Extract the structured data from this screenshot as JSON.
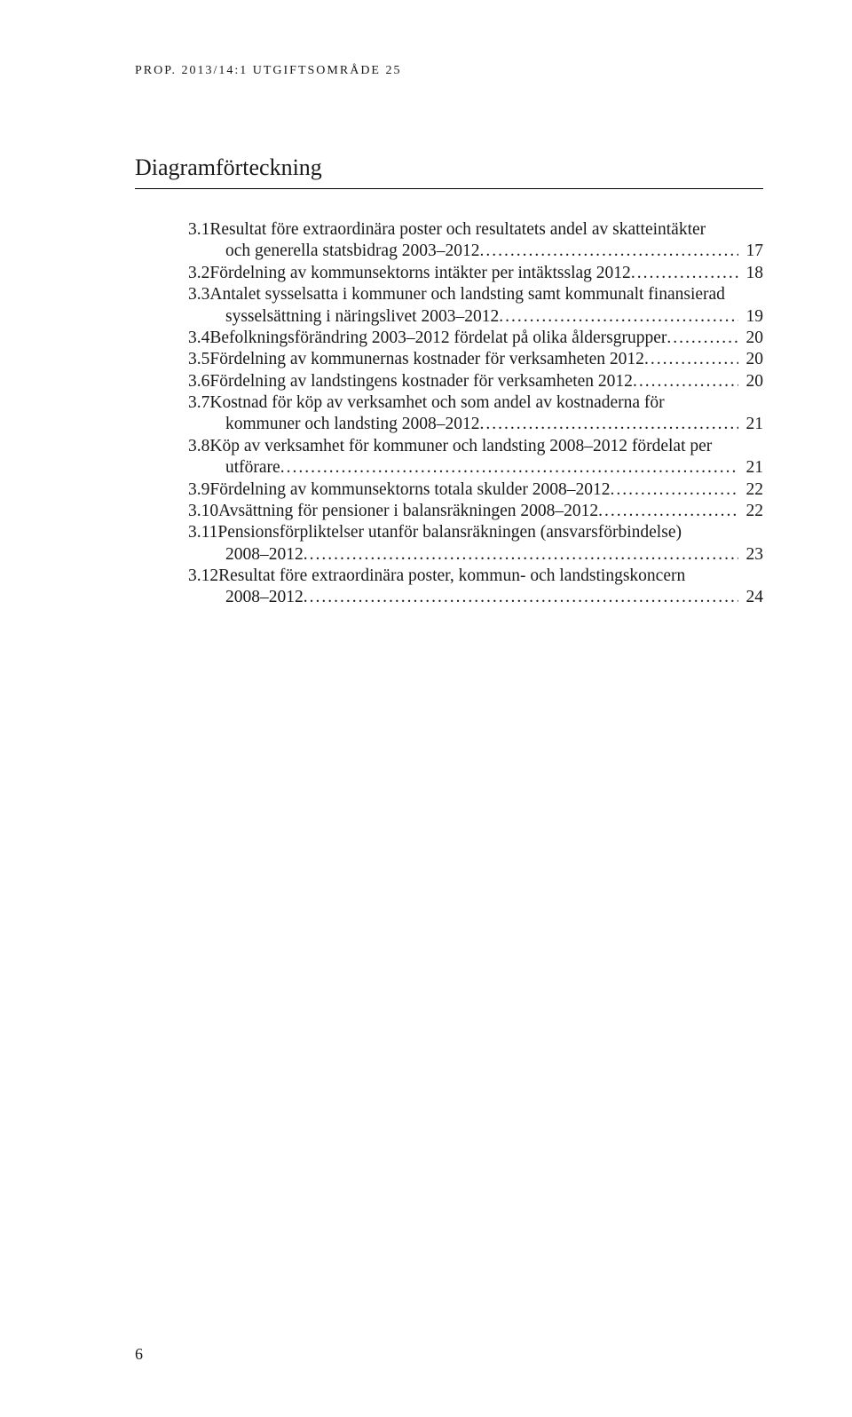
{
  "running_head": "PROP. 2013/14:1 UTGIFTSOMRÅDE 25",
  "section_title": "Diagramförteckning",
  "page_number": "6",
  "entries": [
    {
      "num": "3.1 ",
      "lines": [
        "Resultat före extraordinära poster och resultatets andel av skatteintäkter",
        "och generella statsbidrag 2003–2012"
      ],
      "page": "17"
    },
    {
      "num": "3.2 ",
      "lines": [
        "Fördelning av kommunsektorns intäkter per intäktsslag 2012"
      ],
      "page": "18"
    },
    {
      "num": "3.3 ",
      "lines": [
        "Antalet sysselsatta i kommuner och landsting samt kommunalt finansierad",
        "sysselsättning i näringslivet 2003–2012"
      ],
      "page": "19"
    },
    {
      "num": "3.4 ",
      "lines": [
        "Befolkningsförändring 2003–2012 fördelat på olika åldersgrupper"
      ],
      "page": "20"
    },
    {
      "num": "3.5 ",
      "lines": [
        "Fördelning av kommunernas kostnader för verksamheten 2012"
      ],
      "page": "20"
    },
    {
      "num": "3.6 ",
      "lines": [
        "Fördelning av landstingens kostnader för verksamheten 2012"
      ],
      "page": "20"
    },
    {
      "num": "3.7 ",
      "lines": [
        "Kostnad för köp av verksamhet och som andel av kostnaderna för",
        "kommuner och landsting 2008–2012"
      ],
      "page": "21"
    },
    {
      "num": "3.8 ",
      "lines": [
        "Köp av verksamhet för kommuner och landsting 2008–2012 fördelat per",
        "utförare"
      ],
      "page": "21"
    },
    {
      "num": "3.9 ",
      "lines": [
        "Fördelning av kommunsektorns totala skulder 2008–2012"
      ],
      "page": "22"
    },
    {
      "num": "3.10 ",
      "lines": [
        "Avsättning för pensioner i balansräkningen 2008–2012"
      ],
      "page": "22"
    },
    {
      "num": "3.11 ",
      "lines": [
        "Pensionsförpliktelser utanför balansräkningen (ansvarsförbindelse)",
        "2008–2012"
      ],
      "page": "23"
    },
    {
      "num": "3.12 ",
      "lines": [
        "Resultat före extraordinära poster, kommun- och landstingskoncern",
        "2008–2012"
      ],
      "page": "24"
    }
  ]
}
